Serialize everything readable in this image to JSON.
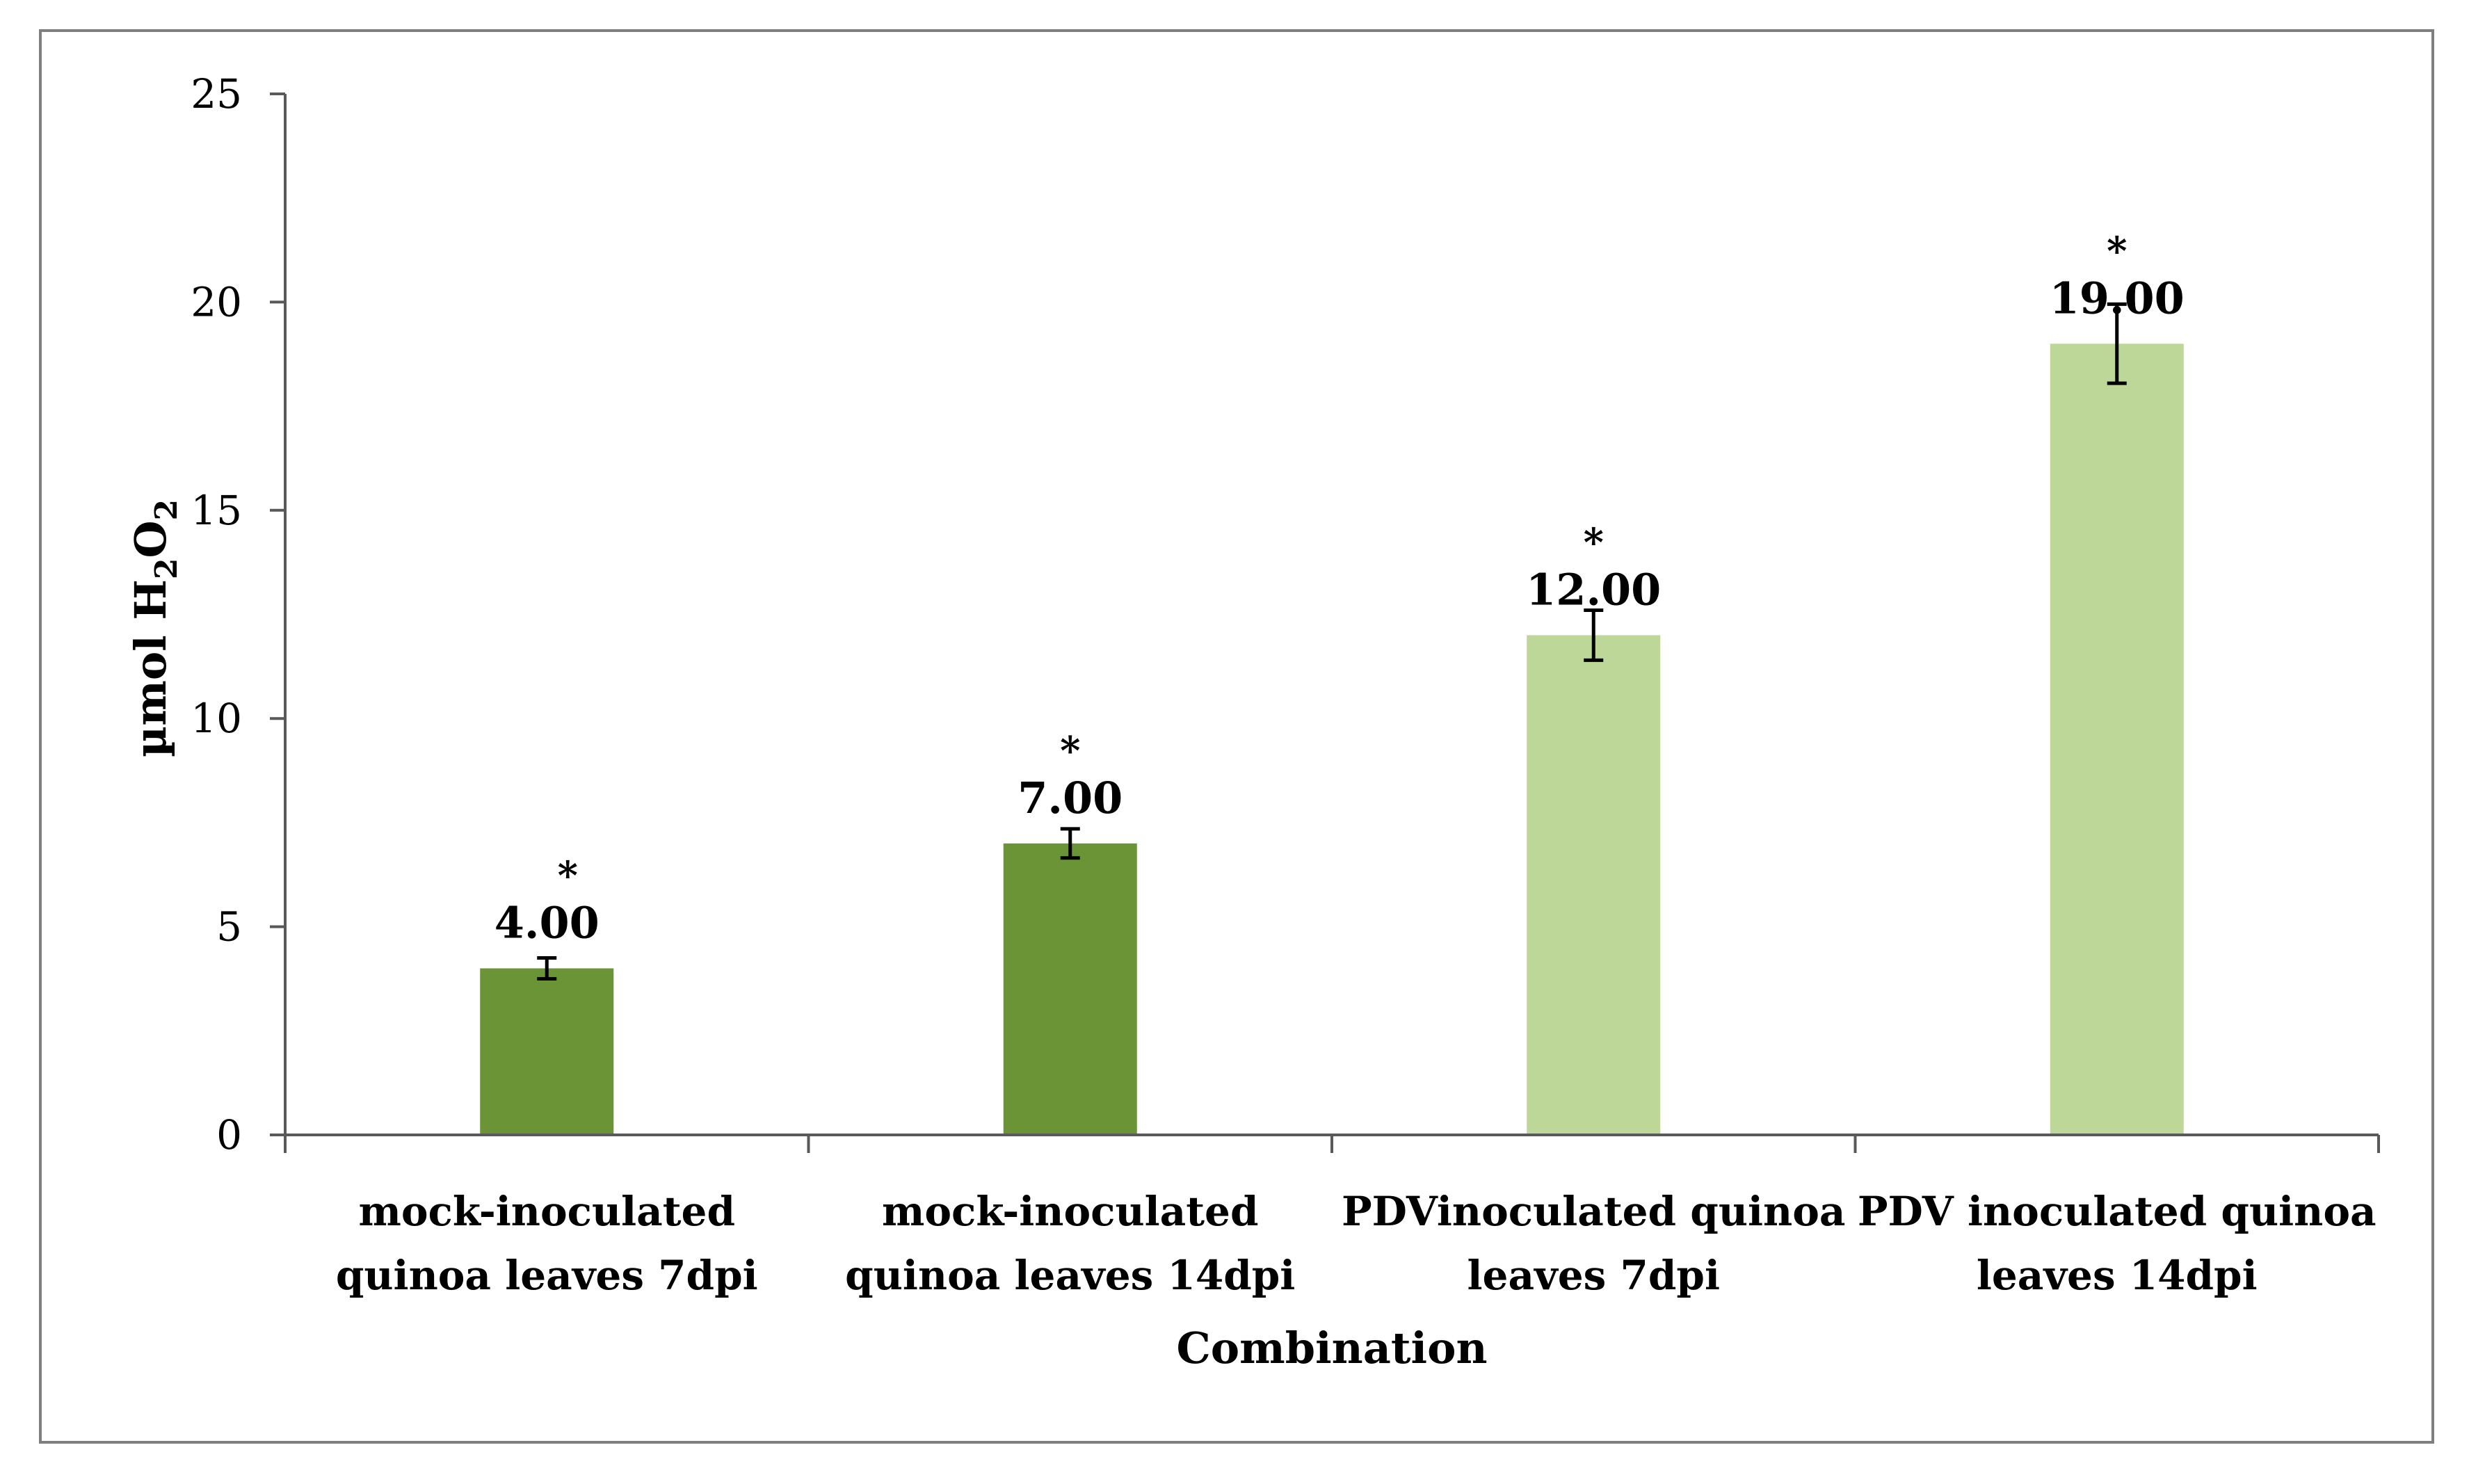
{
  "chart_data": {
    "type": "bar",
    "categories": [
      [
        "mock-inoculated",
        "quinoa leaves 7dpi"
      ],
      [
        "mock-inoculated",
        "quinoa leaves 14dpi"
      ],
      [
        "PDVinoculated quinoa",
        "leaves 7dpi"
      ],
      [
        "PDV inoculated quinoa",
        "leaves 14dpi"
      ]
    ],
    "values": [
      4.0,
      7.0,
      12.0,
      19.0
    ],
    "value_labels": [
      "4.00",
      "7.00",
      "12.00",
      "19.00"
    ],
    "errors": [
      0.25,
      0.35,
      0.6,
      0.95
    ],
    "significance": [
      "*",
      "*",
      "*",
      "*"
    ],
    "colors": [
      "#6a9435",
      "#6a9435",
      "#bcd798",
      "#bcd798"
    ],
    "xlabel": "Combination",
    "ylabel": {
      "prefix": "µmol H",
      "sub1": "2",
      "mid": "O",
      "sub2": "2"
    },
    "ylim": [
      0,
      25
    ],
    "yticks": [
      0,
      5,
      10,
      15,
      20,
      25
    ],
    "legend": null
  }
}
